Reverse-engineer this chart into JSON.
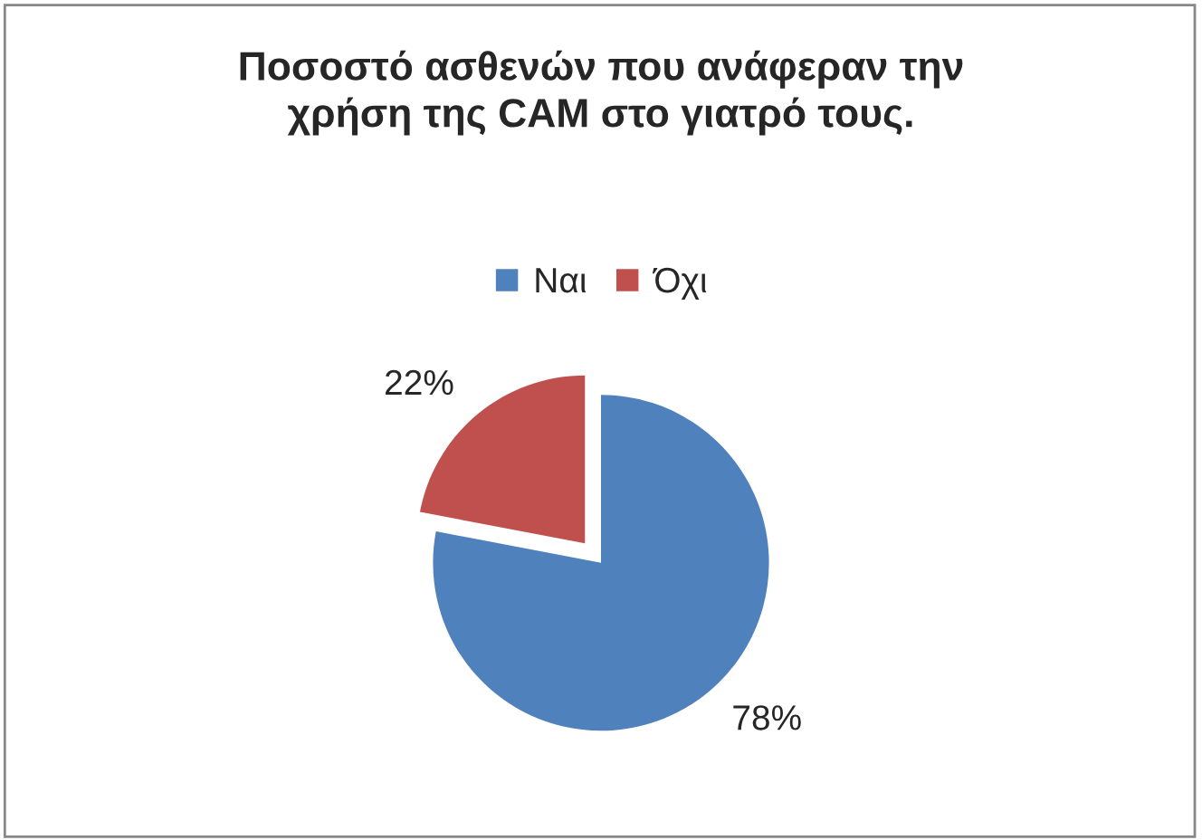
{
  "chart_data": {
    "type": "pie",
    "title": "Ποσοστό ασθενών που ανάφεραν την\nχρήση της CAM στο γιατρό τους.",
    "categories": [
      "Ναι",
      "Όχι"
    ],
    "values": [
      78,
      22
    ],
    "colors": [
      "#4f81bd",
      "#c0504d"
    ],
    "value_labels": [
      "78%",
      "22%"
    ],
    "legend": "top"
  }
}
